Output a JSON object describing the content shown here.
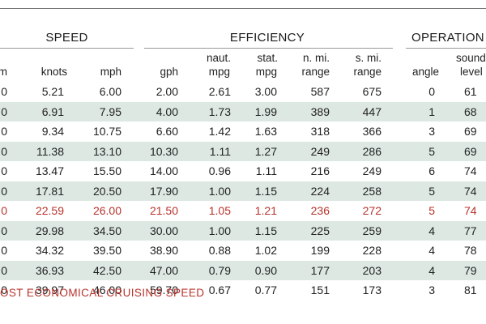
{
  "groups": {
    "speed": "SPEED",
    "efficiency": "EFFICIENCY",
    "operations": "OPERATION"
  },
  "columns": {
    "rpm_fragment": "m",
    "knots": "knots",
    "mph": "mph",
    "gph": "gph",
    "naut_mpg_1": "naut.",
    "naut_mpg_2": "mpg",
    "stat_mpg_1": "stat.",
    "stat_mpg_2": "mpg",
    "nmi_range_1": "n. mi.",
    "nmi_range_2": "range",
    "smi_range_1": "s. mi.",
    "smi_range_2": "range",
    "angle": "angle",
    "sound_1": "sound",
    "sound_2": "level"
  },
  "rows": [
    {
      "rpm": "0",
      "knots": "5.21",
      "mph": "6.00",
      "gph": "2.00",
      "naut_mpg": "2.61",
      "stat_mpg": "3.00",
      "nmi_range": "587",
      "smi_range": "675",
      "angle": "0",
      "sound": "61"
    },
    {
      "rpm": "0",
      "knots": "6.91",
      "mph": "7.95",
      "gph": "4.00",
      "naut_mpg": "1.73",
      "stat_mpg": "1.99",
      "nmi_range": "389",
      "smi_range": "447",
      "angle": "1",
      "sound": "68"
    },
    {
      "rpm": "0",
      "knots": "9.34",
      "mph": "10.75",
      "gph": "6.60",
      "naut_mpg": "1.42",
      "stat_mpg": "1.63",
      "nmi_range": "318",
      "smi_range": "366",
      "angle": "3",
      "sound": "69"
    },
    {
      "rpm": "0",
      "knots": "11.38",
      "mph": "13.10",
      "gph": "10.30",
      "naut_mpg": "1.11",
      "stat_mpg": "1.27",
      "nmi_range": "249",
      "smi_range": "286",
      "angle": "5",
      "sound": "69"
    },
    {
      "rpm": "0",
      "knots": "13.47",
      "mph": "15.50",
      "gph": "14.00",
      "naut_mpg": "0.96",
      "stat_mpg": "1.11",
      "nmi_range": "216",
      "smi_range": "249",
      "angle": "6",
      "sound": "74"
    },
    {
      "rpm": "0",
      "knots": "17.81",
      "mph": "20.50",
      "gph": "17.90",
      "naut_mpg": "1.00",
      "stat_mpg": "1.15",
      "nmi_range": "224",
      "smi_range": "258",
      "angle": "5",
      "sound": "74"
    },
    {
      "rpm": "0",
      "knots": "22.59",
      "mph": "26.00",
      "gph": "21.50",
      "naut_mpg": "1.05",
      "stat_mpg": "1.21",
      "nmi_range": "236",
      "smi_range": "272",
      "angle": "5",
      "sound": "74",
      "economical": true
    },
    {
      "rpm": "0",
      "knots": "29.98",
      "mph": "34.50",
      "gph": "30.00",
      "naut_mpg": "1.00",
      "stat_mpg": "1.15",
      "nmi_range": "225",
      "smi_range": "259",
      "angle": "4",
      "sound": "77"
    },
    {
      "rpm": "0",
      "knots": "34.32",
      "mph": "39.50",
      "gph": "38.90",
      "naut_mpg": "0.88",
      "stat_mpg": "1.02",
      "nmi_range": "199",
      "smi_range": "228",
      "angle": "4",
      "sound": "78"
    },
    {
      "rpm": "0",
      "knots": "36.93",
      "mph": "42.50",
      "gph": "47.00",
      "naut_mpg": "0.79",
      "stat_mpg": "0.90",
      "nmi_range": "177",
      "smi_range": "203",
      "angle": "4",
      "sound": "79"
    },
    {
      "rpm": "0",
      "knots": "39.97",
      "mph": "46.00",
      "gph": "59.70",
      "naut_mpg": "0.67",
      "stat_mpg": "0.77",
      "nmi_range": "151",
      "smi_range": "173",
      "angle": "3",
      "sound": "81"
    }
  ],
  "footnote": "OST ECONOMICAL CRUISING SPEED",
  "colors": {
    "highlight": "#b8332c",
    "band": "#dde8e3"
  }
}
